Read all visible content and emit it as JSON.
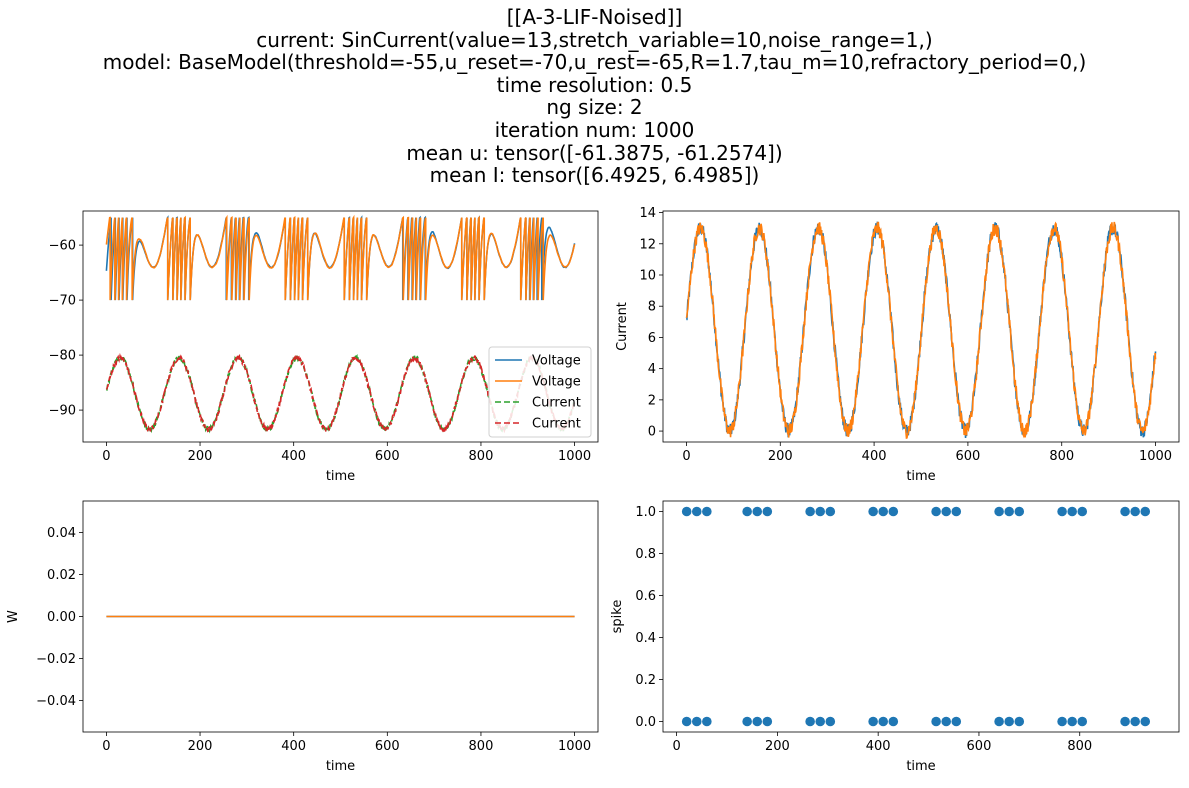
{
  "title_lines": [
    "[[A-3-LIF-Noised]]",
    "current: SinCurrent(value=13,stretch_variable=10,noise_range=1,)",
    "model: BaseModel(threshold=-55,u_reset=-70,u_rest=-65,R=1.7,tau_m=10,refractory_period=0,)",
    "time resolution: 0.5",
    "ng size: 2",
    "iteration num: 1000",
    "mean u: tensor([-61.3875, -61.2574])",
    "mean I: tensor([6.4925, 6.4985])"
  ],
  "colors": {
    "c0": "#1f77b4",
    "c1": "#ff7f0e",
    "c2": "#2ca02c",
    "c3": "#d62728"
  },
  "chart_data": [
    {
      "id": "voltage-current",
      "type": "line",
      "xlabel": "time",
      "ylabel": "",
      "xlim": [
        -50,
        1050
      ],
      "ylim": [
        -95.8,
        -53.8
      ],
      "xticks": [
        0,
        200,
        400,
        600,
        800,
        1000
      ],
      "yticks": [
        -90,
        -80,
        -70,
        -60
      ],
      "legend": "lower-right",
      "series": [
        {
          "name": "Voltage",
          "kind": "voltage",
          "color": "#1f77b4",
          "dash": false
        },
        {
          "name": "Voltage",
          "kind": "voltage",
          "color": "#ff7f0e",
          "dash": false
        },
        {
          "name": "Current",
          "kind": "current",
          "color": "#2ca02c",
          "dash": true
        },
        {
          "name": "Current",
          "kind": "current",
          "color": "#d62728",
          "dash": true
        }
      ],
      "voltage": {
        "threshold": -55,
        "u_reset": -70,
        "u_rest": -65,
        "start": [
          -66,
          -60.7
        ]
      },
      "current_offset": -93.5
    },
    {
      "id": "current",
      "type": "line",
      "xlabel": "time",
      "ylabel": "Current",
      "xlim": [
        -50,
        1050
      ],
      "ylim": [
        -0.7,
        14.1
      ],
      "xticks": [
        0,
        200,
        400,
        600,
        800,
        1000
      ],
      "yticks": [
        0,
        2,
        4,
        6,
        8,
        10,
        12,
        14
      ],
      "series": [
        {
          "color": "#1f77b4"
        },
        {
          "color": "#ff7f0e"
        }
      ],
      "sin": {
        "amplitude": 6.5,
        "center": 6.5,
        "period": 125.66,
        "start": 7.0,
        "end": [
          5.1,
          4.6
        ]
      }
    },
    {
      "id": "weights",
      "type": "line",
      "xlabel": "time",
      "ylabel": "W",
      "xlim": [
        -50,
        1050
      ],
      "ylim": [
        -0.055,
        0.055
      ],
      "xticks": [
        0,
        200,
        400,
        600,
        800,
        1000
      ],
      "yticks": [
        -0.04,
        -0.02,
        0.0,
        0.02,
        0.04
      ],
      "ytick_labels": [
        "−0.04",
        "−0.02",
        "0.00",
        "0.02",
        "0.04"
      ],
      "series": [
        {
          "x": [
            0,
            1000
          ],
          "y": [
            0,
            0
          ],
          "color": "#1f77b4"
        },
        {
          "x": [
            0,
            1000
          ],
          "y": [
            0,
            0
          ],
          "color": "#ff7f0e"
        }
      ]
    },
    {
      "id": "spikes",
      "type": "scatter",
      "xlabel": "time",
      "ylabel": "spike",
      "xlim": [
        -27,
        997
      ],
      "ylim": [
        -0.05,
        1.05
      ],
      "xticks": [
        0,
        200,
        400,
        600,
        800
      ],
      "yticks": [
        0.0,
        0.2,
        0.4,
        0.6,
        0.8,
        1.0
      ],
      "ytick_labels": [
        "0.0",
        "0.2",
        "0.4",
        "0.6",
        "0.8",
        "1.0"
      ],
      "color": "#1f77b4",
      "x": [
        20,
        40,
        60,
        140,
        160,
        180,
        265,
        285,
        305,
        390,
        410,
        430,
        515,
        535,
        555,
        640,
        660,
        680,
        765,
        785,
        805,
        890,
        910,
        930
      ],
      "levels": [
        0,
        1
      ]
    }
  ]
}
